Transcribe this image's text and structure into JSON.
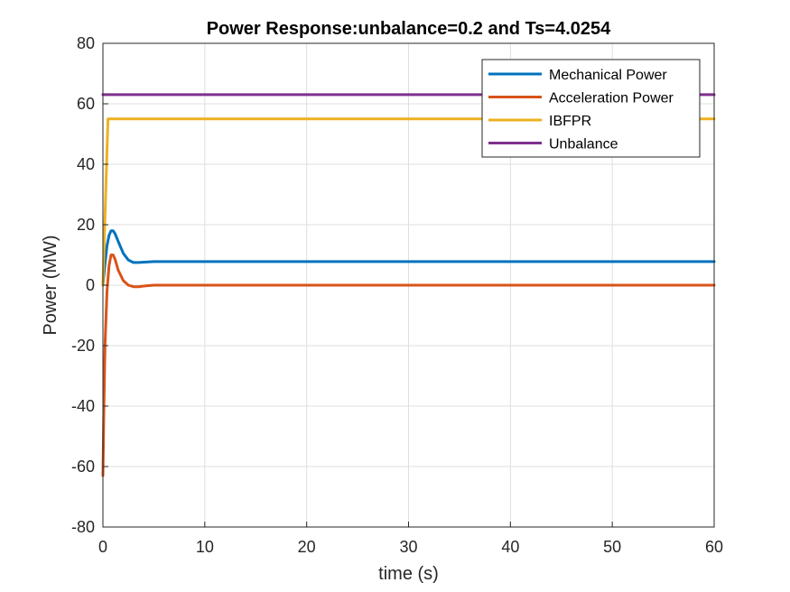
{
  "chart_data": {
    "type": "line",
    "title": "Power Response:unbalance=0.2 and Ts=4.0254",
    "xlabel": "time (s)",
    "ylabel": "Power (MW)",
    "xlim": [
      0,
      60
    ],
    "ylim": [
      -80,
      80
    ],
    "xticks": [
      0,
      10,
      20,
      30,
      40,
      50,
      60
    ],
    "yticks": [
      -80,
      -60,
      -40,
      -20,
      0,
      20,
      40,
      60,
      80
    ],
    "grid": true,
    "legend_position": "top-right",
    "series": [
      {
        "name": "Mechanical Power",
        "color": "#0072BD",
        "x": [
          0,
          0.2,
          0.4,
          0.6,
          0.8,
          1.0,
          1.2,
          1.5,
          2.0,
          2.5,
          3.0,
          3.5,
          4.0,
          5.0,
          6.0,
          10,
          20,
          30,
          40,
          50,
          60
        ],
        "y": [
          0,
          7,
          13,
          16.5,
          18,
          18,
          17,
          14.5,
          10.5,
          8.3,
          7.5,
          7.5,
          7.6,
          7.8,
          7.8,
          7.8,
          7.8,
          7.8,
          7.8,
          7.8,
          7.8
        ]
      },
      {
        "name": "Acceleration Power",
        "color": "#D95319",
        "x": [
          0,
          0.1,
          0.2,
          0.4,
          0.6,
          0.8,
          1.0,
          1.2,
          1.5,
          2.0,
          2.5,
          3.0,
          3.5,
          4.0,
          5.0,
          6.0,
          10,
          20,
          30,
          40,
          50,
          60
        ],
        "y": [
          -63,
          -40,
          -20,
          -2,
          6.5,
          10,
          10,
          8.5,
          5,
          1.5,
          0,
          -0.5,
          -0.5,
          -0.3,
          0,
          0,
          0,
          0,
          0,
          0,
          0,
          0
        ]
      },
      {
        "name": "IBFPR",
        "color": "#EDB120",
        "x": [
          0,
          0.5,
          1,
          10,
          20,
          30,
          40,
          50,
          60
        ],
        "y": [
          0,
          55,
          55,
          55,
          55,
          55,
          55,
          55,
          55
        ]
      },
      {
        "name": "Unbalance",
        "color": "#7E2F8E",
        "x": [
          0,
          60
        ],
        "y": [
          63,
          63
        ]
      }
    ]
  }
}
